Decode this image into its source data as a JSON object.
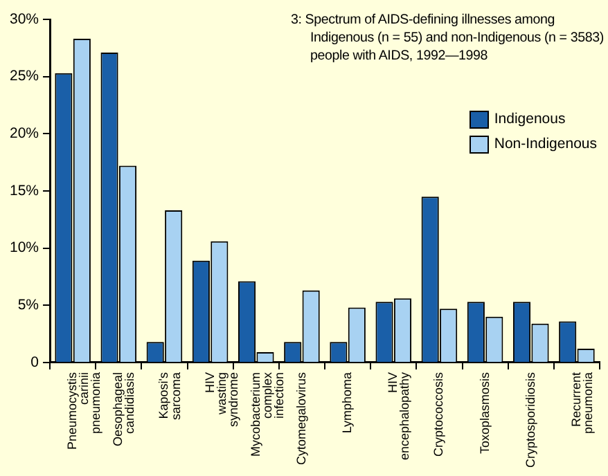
{
  "chart_data": {
    "type": "bar",
    "title": "3: Spectrum of AIDS-defining illnesses among Indigenous (n = 55) and non-Indigenous (n = 3583) people with AIDS, 1992—1998",
    "categories": [
      "Pneumocystis carinii pneumonia",
      "Oesophageal candidiasis",
      "Kaposi's sarcoma",
      "HIV wasting syndrome",
      "Mycobacterium complex infection",
      "Cytomegalovirus",
      "Lymphoma",
      "HIV encephalopathy",
      "Cryptococcosis",
      "Toxoplasmosis",
      "Cryptosporidiosis",
      "Recurrent pneumonia"
    ],
    "series": [
      {
        "name": "Indigenous",
        "color": "#1a5fa8",
        "values": [
          25.3,
          27.1,
          1.8,
          8.9,
          7.1,
          1.8,
          1.8,
          5.3,
          14.5,
          5.3,
          5.3,
          3.6
        ]
      },
      {
        "name": "Non-Indigenous",
        "color": "#a8d2f2",
        "values": [
          28.3,
          17.2,
          13.3,
          10.6,
          0.9,
          6.3,
          4.8,
          5.6,
          4.7,
          4.0,
          3.4,
          1.2
        ]
      }
    ],
    "ylim": [
      0,
      30
    ],
    "yticks": [
      0,
      {
        "value": 5,
        "label": "5%"
      },
      {
        "value": 10,
        "label": "10%"
      },
      {
        "value": 15,
        "label": "15%"
      },
      {
        "value": 20,
        "label": "20%"
      },
      {
        "value": 25,
        "label": "25%"
      },
      {
        "value": 30,
        "label": "30%"
      }
    ],
    "grid": false,
    "legend": "right"
  }
}
